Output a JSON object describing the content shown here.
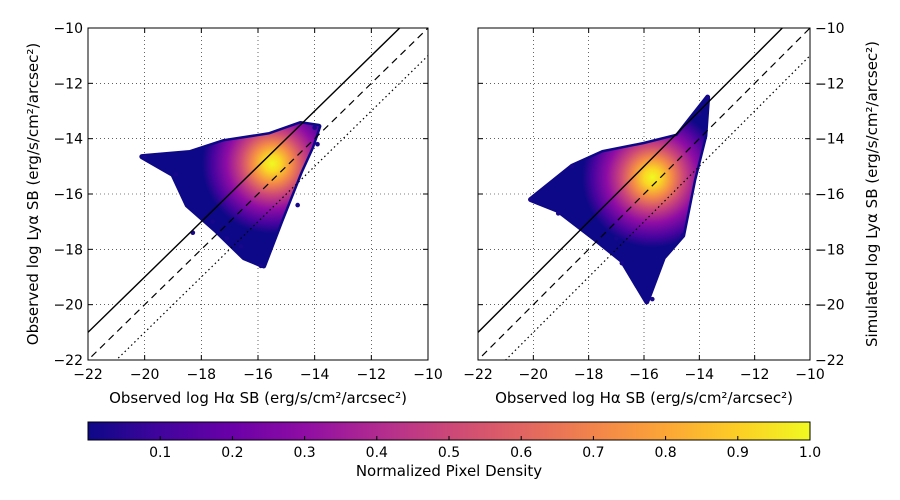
{
  "chart_data": [
    {
      "type": "scatter",
      "panel": "left",
      "xlabel": "Observed log Hα SB (erg/s/cm²/arcsec²)",
      "ylabel": "Observed log Lyα SB (erg/s/cm²/arcsec²)",
      "xlim": [
        -22,
        -10
      ],
      "ylim": [
        -22,
        -10
      ],
      "xticks": [
        -22,
        -20,
        -18,
        -16,
        -14,
        -12,
        -10
      ],
      "yticks": [
        -22,
        -20,
        -18,
        -16,
        -14,
        -12,
        -10
      ],
      "xtick_labels": [
        "−22",
        "−20",
        "−18",
        "−16",
        "−14",
        "−12",
        "−10"
      ],
      "ytick_labels": [
        "−22",
        "−20",
        "−18",
        "−16",
        "−14",
        "−12",
        "−10"
      ],
      "ylabel_side": "left",
      "grid": true,
      "reference_lines": [
        {
          "style": "solid",
          "offset": 1.0
        },
        {
          "style": "dashed",
          "offset": 0.0
        },
        {
          "style": "dotted",
          "offset": -1.0
        }
      ],
      "density_peak": {
        "x": -15.5,
        "y": -14.9
      },
      "point_cloud_outline": [
        [
          -20.1,
          -14.65
        ],
        [
          -18.4,
          -14.5
        ],
        [
          -17.2,
          -14.1
        ],
        [
          -15.6,
          -13.85
        ],
        [
          -14.5,
          -13.45
        ],
        [
          -13.85,
          -13.55
        ],
        [
          -14.1,
          -14.3
        ],
        [
          -14.5,
          -15.2
        ],
        [
          -15.2,
          -17.0
        ],
        [
          -15.8,
          -18.6
        ],
        [
          -16.5,
          -18.3
        ],
        [
          -17.5,
          -17.3
        ],
        [
          -18.5,
          -16.4
        ],
        [
          -19.0,
          -15.3
        ]
      ],
      "points": [
        [
          -20.0,
          -14.65
        ],
        [
          -18.3,
          -17.4
        ],
        [
          -17.1,
          -17.6
        ],
        [
          -16.6,
          -17.9
        ],
        [
          -15.9,
          -18.6
        ],
        [
          -14.6,
          -16.4
        ],
        [
          -14.0,
          -13.6
        ],
        [
          -13.9,
          -14.2
        ],
        [
          -18.9,
          -15.3
        ],
        [
          -17.6,
          -17.0
        ]
      ]
    },
    {
      "type": "scatter",
      "panel": "right",
      "xlabel": "Observed log Hα SB (erg/s/cm²/arcsec²)",
      "ylabel": "Simulated log Lyα SB (erg/s/cm²/arcsec²)",
      "xlim": [
        -22,
        -10
      ],
      "ylim": [
        -22,
        -10
      ],
      "xticks": [
        -22,
        -20,
        -18,
        -16,
        -14,
        -12,
        -10
      ],
      "yticks": [
        -22,
        -20,
        -18,
        -16,
        -14,
        -12,
        -10
      ],
      "xtick_labels": [
        "−22",
        "−20",
        "−18",
        "−16",
        "−14",
        "−12",
        "−10"
      ],
      "ytick_labels": [
        "−22",
        "−20",
        "−18",
        "−16",
        "−14",
        "−12",
        "−10"
      ],
      "ylabel_side": "right",
      "grid": true,
      "reference_lines": [
        {
          "style": "solid",
          "offset": 1.0
        },
        {
          "style": "dashed",
          "offset": 0.0
        },
        {
          "style": "dotted",
          "offset": -1.0
        }
      ],
      "density_peak": {
        "x": -15.7,
        "y": -15.4
      },
      "point_cloud_outline": [
        [
          -20.1,
          -16.2
        ],
        [
          -18.6,
          -15.0
        ],
        [
          -17.5,
          -14.5
        ],
        [
          -16.0,
          -14.2
        ],
        [
          -14.8,
          -13.9
        ],
        [
          -13.7,
          -12.5
        ],
        [
          -13.8,
          -13.9
        ],
        [
          -14.2,
          -15.5
        ],
        [
          -14.6,
          -17.5
        ],
        [
          -15.3,
          -18.3
        ],
        [
          -15.9,
          -19.9
        ],
        [
          -16.8,
          -18.4
        ],
        [
          -17.8,
          -17.6
        ],
        [
          -19.1,
          -16.6
        ]
      ],
      "points": [
        [
          -20.1,
          -16.2
        ],
        [
          -19.1,
          -16.7
        ],
        [
          -18.6,
          -15.0
        ],
        [
          -15.9,
          -19.9
        ],
        [
          -15.7,
          -19.8
        ],
        [
          -13.7,
          -12.5
        ],
        [
          -14.6,
          -17.5
        ],
        [
          -16.8,
          -18.5
        ],
        [
          -17.0,
          -17.6
        ],
        [
          -14.0,
          -13.1
        ]
      ]
    }
  ],
  "colorbar": {
    "label": "Normalized Pixel Density",
    "colormap": "plasma",
    "range": [
      0.0,
      1.0
    ],
    "ticks": [
      0.1,
      0.2,
      0.3,
      0.4,
      0.5,
      0.6,
      0.7,
      0.8,
      0.9,
      1.0
    ],
    "tick_labels": [
      "0.1",
      "0.2",
      "0.3",
      "0.4",
      "0.5",
      "0.6",
      "0.7",
      "0.8",
      "0.9",
      "1.0"
    ],
    "colors": [
      "#0d0887",
      "#41049d",
      "#6a00a8",
      "#8f0da4",
      "#b12a90",
      "#cc4778",
      "#e16462",
      "#f2844b",
      "#fca636",
      "#fcce25",
      "#f0f921"
    ]
  }
}
